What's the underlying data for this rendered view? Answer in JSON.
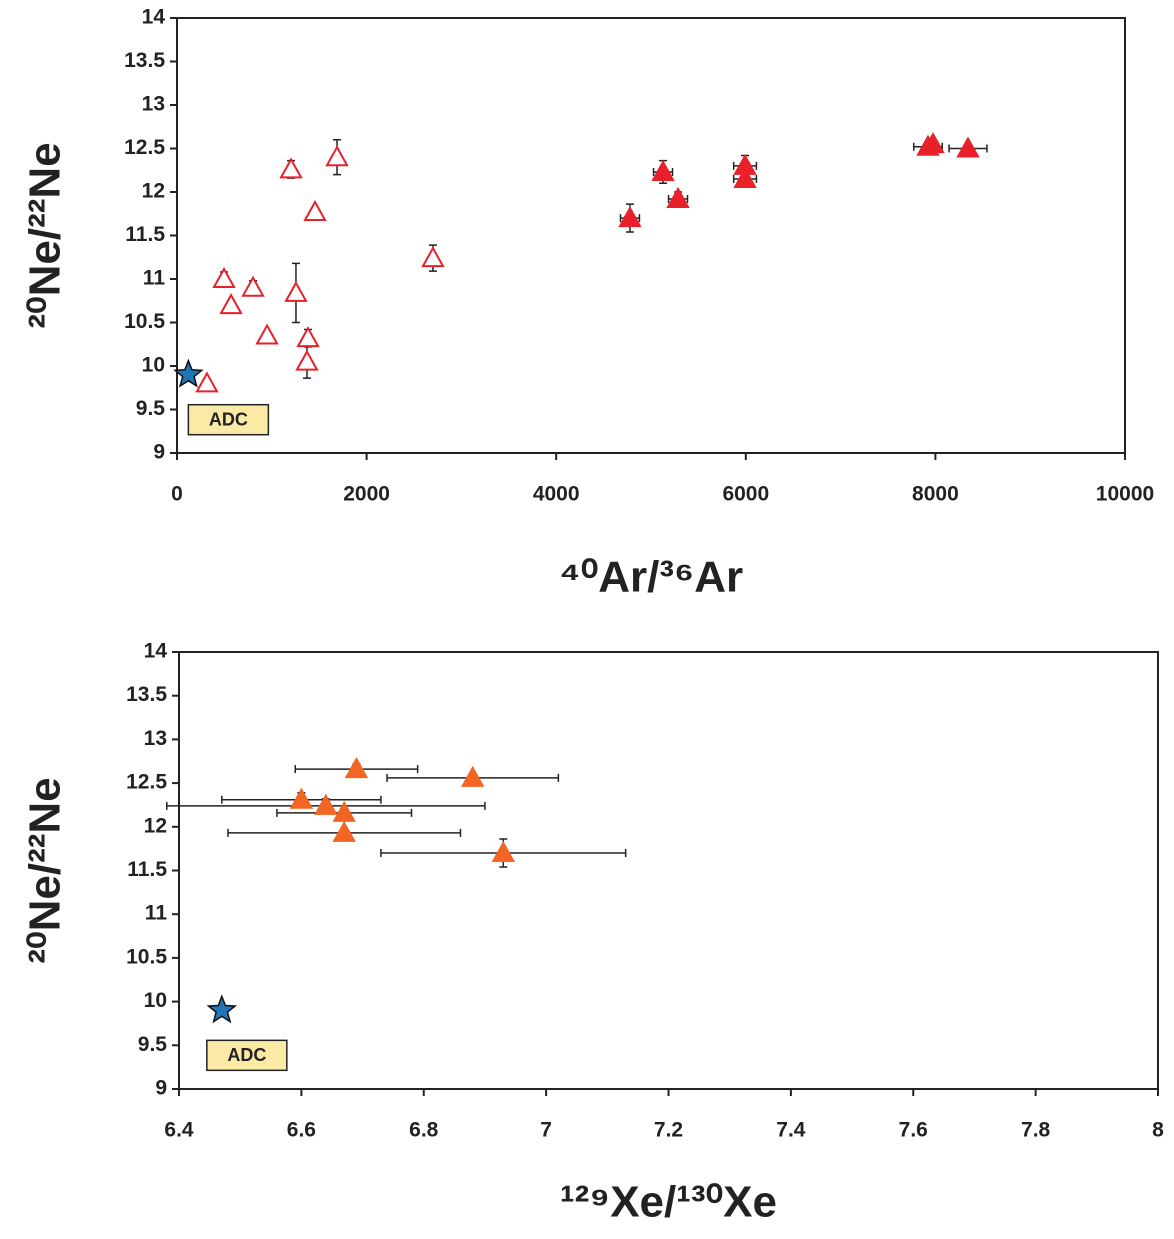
{
  "chart_data": [
    {
      "type": "scatter",
      "xlabel": "⁴⁰Ar/³⁶Ar",
      "ylabel": "²⁰Ne/²²Ne",
      "xlim": [
        0,
        10000
      ],
      "xticks": [
        0,
        2000,
        4000,
        6000,
        8000,
        10000
      ],
      "ylim": [
        9,
        14
      ],
      "yticks": [
        9,
        9.5,
        10,
        10.5,
        11,
        11.5,
        12,
        12.5,
        13,
        13.5,
        14
      ],
      "series": [
        {
          "marker": "triangle-open",
          "color": "#e8202a",
          "x": [
            316,
            496,
            570,
            802,
            950,
            1203,
            1255,
            1382,
            1371,
            1456,
            1688,
            2700
          ],
          "values": [
            9.8,
            11.0,
            10.7,
            10.9,
            10.35,
            12.26,
            10.84,
            10.32,
            10.05,
            11.77,
            12.4,
            11.24
          ],
          "yerr": [
            null,
            0.08,
            null,
            0.08,
            null,
            0.1,
            0.34,
            0.1,
            0.19,
            null,
            0.2,
            0.15
          ],
          "xerr": [
            null,
            null,
            null,
            null,
            null,
            null,
            null,
            null,
            null,
            null,
            null,
            null
          ]
        },
        {
          "marker": "triangle",
          "color": "#e8202a",
          "x": [
            4778,
            5127,
            5285,
            5992,
            5992,
            7922,
            7975,
            8344
          ],
          "values": [
            11.7,
            12.23,
            11.92,
            12.3,
            12.15,
            12.52,
            12.55,
            12.5
          ],
          "yerr": [
            0.16,
            0.13,
            0.08,
            0.12,
            null,
            null,
            null,
            null
          ],
          "xerr": [
            100,
            100,
            100,
            120,
            120,
            150,
            null,
            200
          ]
        },
        {
          "marker": "star",
          "color": "#1f75b8",
          "x": [
            120
          ],
          "values": [
            9.9
          ],
          "yerr": [
            null
          ],
          "xerr": [
            null
          ]
        }
      ],
      "annotations": [
        {
          "text": "ADC"
        }
      ]
    },
    {
      "type": "scatter",
      "xlabel": "¹²⁹Xe/¹³⁰Xe",
      "ylabel": "²⁰Ne/²²Ne",
      "xlim": [
        6.4,
        8
      ],
      "xticks": [
        6.4,
        6.6,
        6.8,
        7,
        7.2,
        7.4,
        7.6,
        7.8,
        8
      ],
      "ylim": [
        9,
        14
      ],
      "yticks": [
        9,
        9.5,
        10,
        10.5,
        11,
        11.5,
        12,
        12.5,
        13,
        13.5,
        14
      ],
      "series": [
        {
          "marker": "triangle",
          "color": "#f26522",
          "x": [
            6.69,
            6.88,
            6.6,
            6.64,
            6.67,
            6.67,
            6.93
          ],
          "values": [
            12.66,
            12.56,
            12.31,
            12.24,
            12.16,
            11.93,
            11.7
          ],
          "yerr": [
            0.06,
            null,
            0.08,
            0.08,
            null,
            null,
            0.16
          ],
          "xerr": [
            0.1,
            0.14,
            0.13,
            0.26,
            0.11,
            0.19,
            0.2
          ]
        },
        {
          "marker": "star",
          "color": "#1f75b8",
          "x": [
            6.47
          ],
          "values": [
            9.9
          ],
          "yerr": [
            null
          ],
          "xerr": [
            null
          ]
        }
      ],
      "annotations": [
        {
          "text": "ADC"
        }
      ]
    }
  ]
}
